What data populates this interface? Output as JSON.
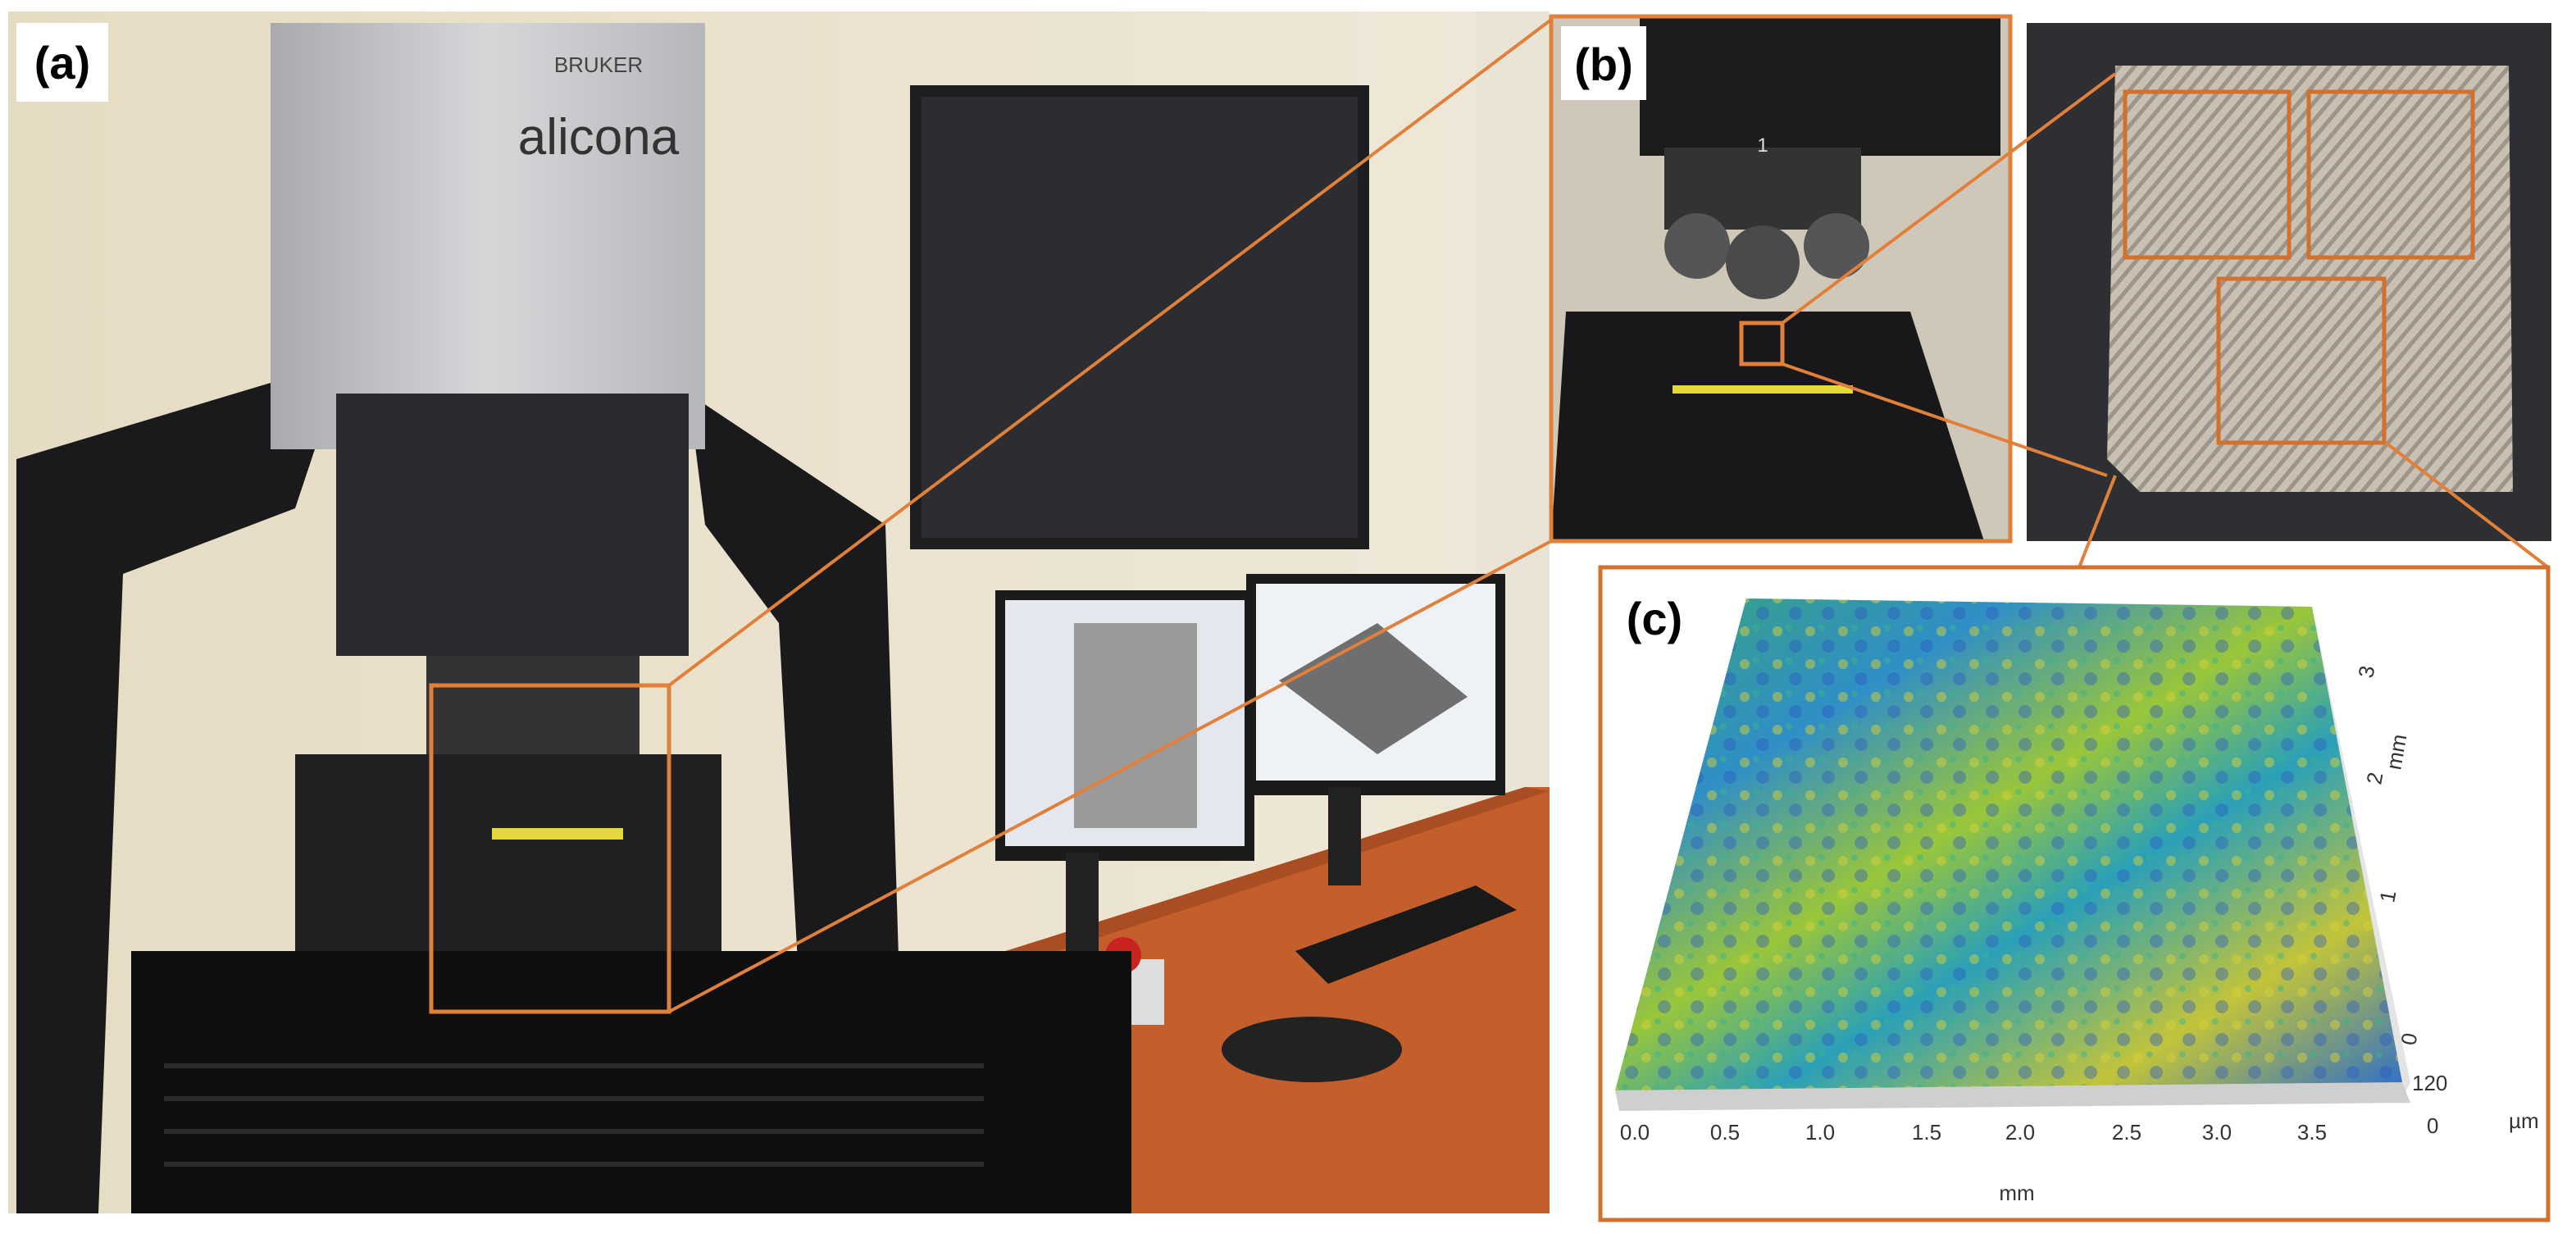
{
  "panels": {
    "a": {
      "label": "(a)",
      "brand": "BRUKER",
      "logo": "alicona"
    },
    "b": {
      "label": "(b)",
      "turret": "1"
    },
    "c": {
      "label": "(c)",
      "x_ticks": [
        "0.0",
        "0.5",
        "1.0",
        "1.5",
        "2.0",
        "2.5",
        "3.0",
        "3.5"
      ],
      "x_label": "mm",
      "y_ticks": [
        "0",
        "1",
        "2",
        "3"
      ],
      "y_label": "mm",
      "z_ticks": [
        "120",
        "0"
      ],
      "z_label": "µm"
    }
  }
}
